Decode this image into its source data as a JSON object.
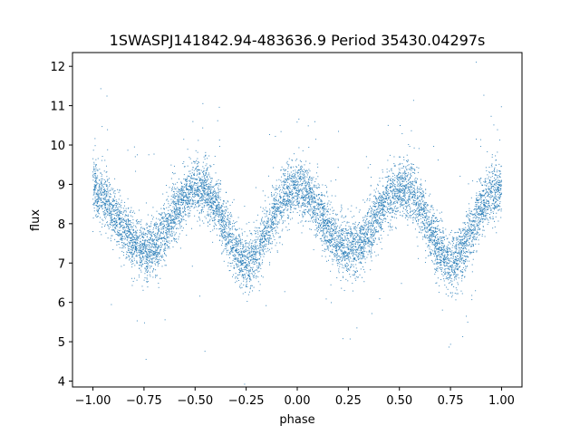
{
  "chart_data": {
    "type": "scatter",
    "title": "1SWASPJ141842.94-483636.9 Period 35430.04297s",
    "xlabel": "phase",
    "ylabel": "flux",
    "xlim": [
      -1.1,
      1.1
    ],
    "ylim": [
      3.85,
      12.35
    ],
    "x_ticks": [
      -1.0,
      -0.75,
      -0.5,
      -0.25,
      0.0,
      0.25,
      0.5,
      0.75,
      1.0
    ],
    "x_tick_labels": [
      "−1.00",
      "−0.75",
      "−0.50",
      "−0.25",
      "0.00",
      "0.25",
      "0.50",
      "0.75",
      "1.00"
    ],
    "y_ticks": [
      4,
      5,
      6,
      7,
      8,
      9,
      10,
      11,
      12
    ],
    "y_tick_labels": [
      "4",
      "5",
      "6",
      "7",
      "8",
      "9",
      "10",
      "11",
      "12"
    ],
    "grid": false,
    "legend": "none",
    "marker_color": "#1f77b4",
    "phased_profile": {
      "description": "folded light curve, x range -1 to 1",
      "phase": [
        -1.0,
        -0.95,
        -0.9,
        -0.85,
        -0.8,
        -0.75,
        -0.7,
        -0.65,
        -0.6,
        -0.55,
        -0.5,
        -0.45,
        -0.4,
        -0.35,
        -0.3,
        -0.25,
        -0.2,
        -0.15,
        -0.1,
        -0.05,
        0.0,
        0.05,
        0.1,
        0.15,
        0.2,
        0.25,
        0.3,
        0.35,
        0.4,
        0.45,
        0.5,
        0.55,
        0.6,
        0.65,
        0.7,
        0.75,
        0.8,
        0.85,
        0.9,
        0.95,
        1.0
      ],
      "flux_mean": [
        8.9,
        8.7,
        8.3,
        7.9,
        7.5,
        7.35,
        7.4,
        7.8,
        8.3,
        8.7,
        8.9,
        8.85,
        8.5,
        7.9,
        7.3,
        7.0,
        7.2,
        7.8,
        8.4,
        8.8,
        8.95,
        8.8,
        8.4,
        7.9,
        7.5,
        7.35,
        7.4,
        7.8,
        8.3,
        8.7,
        8.9,
        8.85,
        8.5,
        7.9,
        7.3,
        7.0,
        7.2,
        7.8,
        8.4,
        8.8,
        8.95
      ],
      "scatter_sigma": 0.4
    }
  }
}
